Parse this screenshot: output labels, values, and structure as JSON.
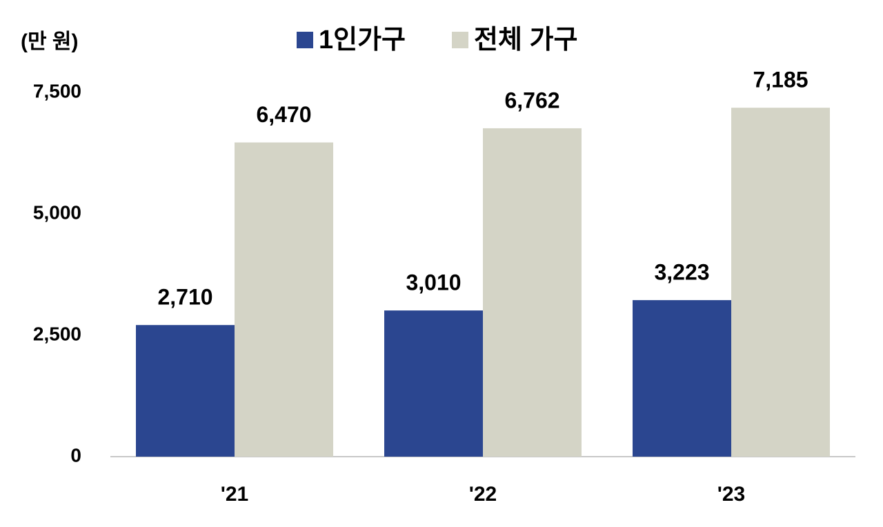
{
  "chart_data": {
    "type": "bar",
    "unit_label": "(만 원)",
    "categories": [
      "'21",
      "'22",
      "'23"
    ],
    "series": [
      {
        "name": "1인가구",
        "color": "#2b4690",
        "values": [
          2710,
          3010,
          3223
        ],
        "value_labels": [
          "2,710",
          "3,010",
          "3,223"
        ]
      },
      {
        "name": "전체 가구",
        "color": "#d4d4c6",
        "values": [
          6470,
          6762,
          7185
        ],
        "value_labels": [
          "6,470",
          "6,762",
          "7,185"
        ]
      }
    ],
    "ylim": [
      0,
      7500
    ],
    "yticks": [
      0,
      {
        "value": 2500,
        "label": "2,500"
      },
      {
        "value": 5000,
        "label": "5,000"
      },
      {
        "value": 7500,
        "label": "7,500"
      }
    ],
    "grid": false
  }
}
